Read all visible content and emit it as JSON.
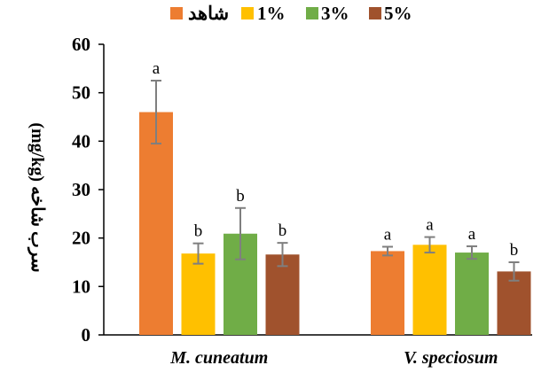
{
  "chart_data": {
    "type": "bar",
    "title": "",
    "ylabel": "(mg/kg) سرب شاخه",
    "xlabel": "",
    "ylim": [
      0,
      60
    ],
    "yticks": [
      0,
      10,
      20,
      30,
      40,
      50,
      60
    ],
    "grid": false,
    "legend_position": "top",
    "categories": [
      "M. cuneatum",
      "V. speciosum"
    ],
    "series": [
      {
        "name": "شاهد",
        "color": "#ED7D31",
        "values": [
          46,
          17.3
        ],
        "error": [
          6.5,
          0.9
        ],
        "labels": [
          "a",
          "a"
        ]
      },
      {
        "name": "1%",
        "color": "#FFC000",
        "values": [
          16.8,
          18.6
        ],
        "error": [
          2.1,
          1.6
        ],
        "labels": [
          "b",
          "a"
        ]
      },
      {
        "name": "3%",
        "color": "#70AD47",
        "values": [
          20.9,
          17.0
        ],
        "error": [
          5.3,
          1.3
        ],
        "labels": [
          "b",
          "a"
        ]
      },
      {
        "name": "5%",
        "color": "#A0522D",
        "values": [
          16.6,
          13.1
        ],
        "error": [
          2.4,
          1.9
        ],
        "labels": [
          "b",
          "b"
        ]
      }
    ]
  }
}
